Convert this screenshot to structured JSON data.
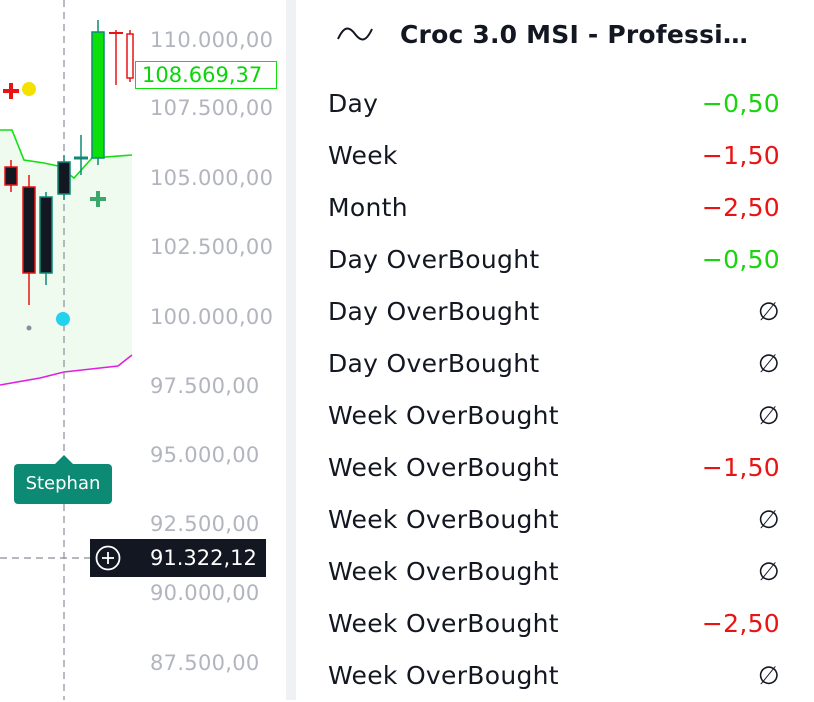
{
  "price_scale": {
    "labels": [
      "110.000,00",
      "107.500,00",
      "105.000,00",
      "102.500,00",
      "100.000,00",
      "97.500,00",
      "95.000,00",
      "92.500,00",
      "90.000,00",
      "87.500,00"
    ]
  },
  "last_price": {
    "value": "108.669,37",
    "color": "#0be00b"
  },
  "crosshair": {
    "price": "91.322,12",
    "add_icon": "plus-circle-icon"
  },
  "user_tag": {
    "name": "Stephan",
    "color": "#0c8a74"
  },
  "indicator": {
    "icon": "wave-icon",
    "title": "Croc 3.0 MSI - Professi…",
    "rows": [
      {
        "label": "Day",
        "value": "−0,50",
        "tone": "pos"
      },
      {
        "label": "Week",
        "value": "−1,50",
        "tone": "neg"
      },
      {
        "label": "Month",
        "value": "−2,50",
        "tone": "neg"
      },
      {
        "label": "Day OverBought",
        "value": "−0,50",
        "tone": "pos"
      },
      {
        "label": "Day OverBought",
        "value": "∅",
        "tone": "nul"
      },
      {
        "label": "Day OverBought",
        "value": "∅",
        "tone": "nul"
      },
      {
        "label": "Week OverBought",
        "value": "∅",
        "tone": "nul"
      },
      {
        "label": "Week OverBought",
        "value": "−1,50",
        "tone": "neg"
      },
      {
        "label": "Week OverBought",
        "value": "∅",
        "tone": "nul"
      },
      {
        "label": "Week OverBought",
        "value": "∅",
        "tone": "nul"
      },
      {
        "label": "Week OverBought",
        "value": "−2,50",
        "tone": "neg"
      },
      {
        "label": "Week OverBought",
        "value": "∅",
        "tone": "nul"
      }
    ]
  },
  "colors": {
    "up": "#0be00b",
    "down": "#e81414",
    "band_line": "#10e010",
    "lower_line": "#e020e0",
    "cloud": "#eefbee"
  }
}
